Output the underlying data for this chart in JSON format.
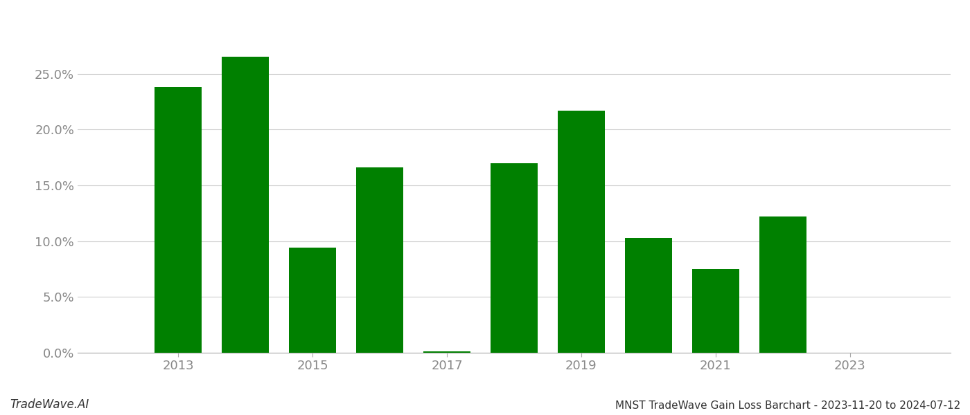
{
  "years": [
    2013,
    2014,
    2015,
    2016,
    2017,
    2018,
    2019,
    2020,
    2021,
    2022,
    2023
  ],
  "values": [
    0.238,
    0.265,
    0.094,
    0.166,
    0.001,
    0.17,
    0.217,
    0.103,
    0.075,
    0.122,
    0.0
  ],
  "bar_color": "#008000",
  "background_color": "#ffffff",
  "grid_color": "#cccccc",
  "title": "MNST TradeWave Gain Loss Barchart - 2023-11-20 to 2024-07-12",
  "watermark": "TradeWave.AI",
  "ylabel_ticks": [
    0.0,
    0.05,
    0.1,
    0.15,
    0.2,
    0.25
  ],
  "ylim": [
    0,
    0.29
  ],
  "xlim": [
    2011.5,
    2024.5
  ],
  "xtick_positions": [
    2013,
    2015,
    2017,
    2019,
    2021,
    2023
  ],
  "tick_fontsize": 13,
  "watermark_fontsize": 12,
  "footer_fontsize": 11,
  "bar_width": 0.7
}
